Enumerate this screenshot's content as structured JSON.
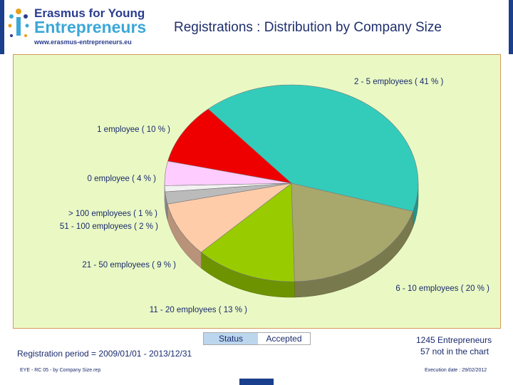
{
  "header": {
    "logo_line1": "Erasmus for Young",
    "logo_line2": "Entrepreneurs",
    "logo_url": "www.erasmus-entrepreneurs.eu",
    "title": "Registrations : Distribution by Company Size",
    "accent_color": "#1a3f8c"
  },
  "chart_data": {
    "type": "pie",
    "title": "Registrations : Distribution by Company Size",
    "slices": [
      {
        "label": "2 - 5  employees  ( 41 % )",
        "value": 41,
        "color": "#33ccbb"
      },
      {
        "label": "6 - 10  employees  ( 20 % )",
        "value": 20,
        "color": "#a8a86c"
      },
      {
        "label": "11 - 20  employees  ( 13 % )",
        "value": 13,
        "color": "#99cc00"
      },
      {
        "label": "21 - 50  employees  ( 9 % )",
        "value": 9,
        "color": "#ffccaa"
      },
      {
        "label": "51 - 100  employees  ( 2 % )",
        "value": 2,
        "color": "#bbbbbb"
      },
      {
        "label": "> 100  employees  ( 1 % )",
        "value": 1,
        "color": "#f2f2f2"
      },
      {
        "label": "0  employee  ( 4 % )",
        "value": 4,
        "color": "#ffccff"
      },
      {
        "label": "1  employee  ( 10 % )",
        "value": 10,
        "color": "#ee0000"
      }
    ]
  },
  "status": {
    "key": "Status",
    "value": "Accepted"
  },
  "footer": {
    "period": "Registration period = 2009/01/01 - 2013/12/31",
    "total": "1245 Entrepreneurs",
    "not_in_chart": "57  not in the chart",
    "report_name": "EYE - RC 05 - by Company Size.rep",
    "execution_date": "Execution date : 29/02/2012"
  }
}
